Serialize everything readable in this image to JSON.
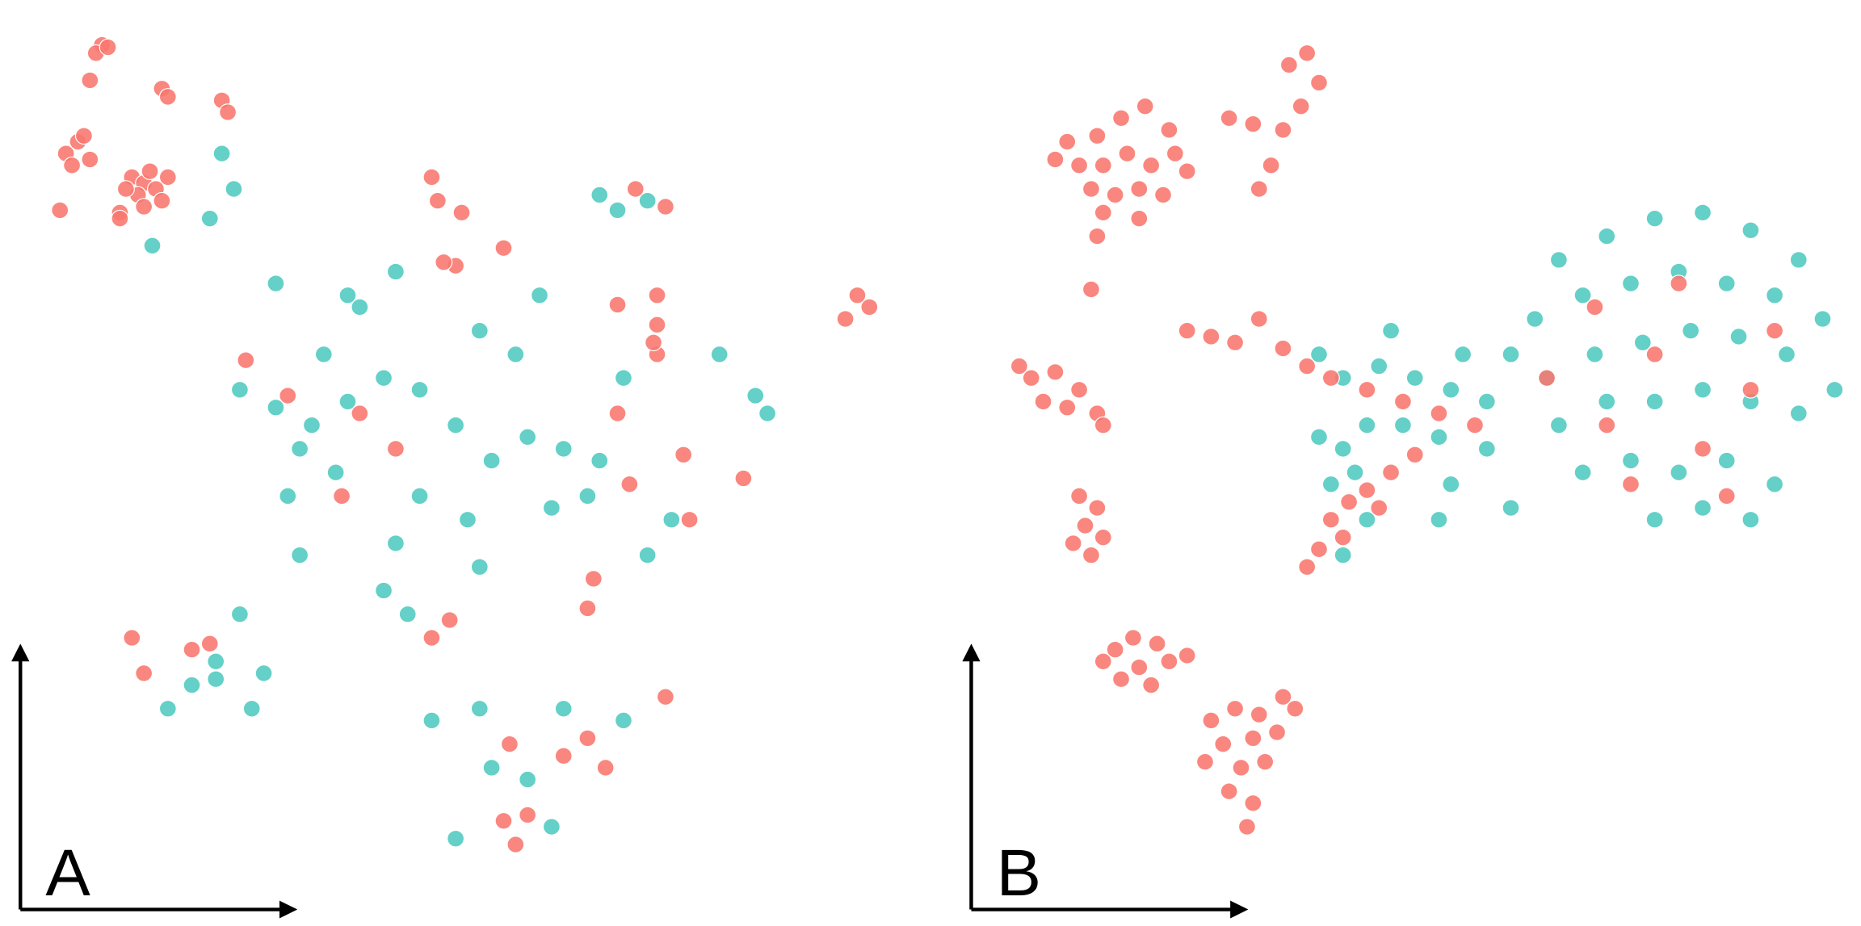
{
  "chart_data": [
    {
      "type": "scatter",
      "title": "A",
      "xlim": [
        0,
        720
      ],
      "ylim": [
        0,
        720
      ],
      "series": [
        {
          "color": "#4ec9c0",
          "x": [
            470,
            485,
            510,
            155,
            165,
            145,
            97,
            200,
            230,
            260,
            290,
            320,
            350,
            380,
            410,
            440,
            470,
            460,
            430,
            400,
            370,
            300,
            270,
            240,
            220,
            250,
            320,
            360,
            300,
            290,
            310,
            370,
            530,
            510,
            570,
            610,
            600,
            420,
            490,
            170,
            150,
            130,
            170,
            110,
            180,
            150,
            190,
            370,
            380,
            440,
            490,
            430,
            350,
            410,
            330,
            220,
            210,
            200,
            260
          ],
          "values": [
            575,
            562,
            570,
            610,
            580,
            555,
            532,
            395,
            380,
            400,
            420,
            410,
            380,
            350,
            370,
            360,
            350,
            320,
            310,
            440,
            460,
            510,
            480,
            440,
            360,
            340,
            320,
            300,
            280,
            240,
            220,
            260,
            300,
            270,
            440,
            390,
            405,
            490,
            420,
            410,
            180,
            160,
            220,
            140,
            140,
            165,
            170,
            140,
            90,
            140,
            130,
            40,
            30,
            80,
            130,
            270,
            320,
            500,
            490
          ]
        },
        {
          "color": "#f8766d",
          "x": [
            55,
            50,
            60,
            45,
            105,
            110,
            155,
            160,
            25,
            35,
            30,
            45,
            40,
            80,
            90,
            100,
            85,
            95,
            110,
            75,
            90,
            105,
            70,
            70,
            20,
            330,
            335,
            355,
            350,
            340,
            390,
            500,
            525,
            485,
            518,
            518,
            518,
            515,
            685,
            675,
            695,
            175,
            210,
            255,
            270,
            300,
            485,
            495,
            540,
            590,
            465,
            460,
            345,
            330,
            145,
            80,
            90,
            395,
            460,
            475,
            390,
            400,
            525,
            545,
            410,
            440,
            130
          ],
          "values": [
            702,
            695,
            700,
            672,
            665,
            658,
            655,
            645,
            610,
            620,
            600,
            605,
            625,
            590,
            585,
            580,
            575,
            595,
            590,
            580,
            565,
            570,
            560,
            555,
            562,
            590,
            570,
            560,
            515,
            518,
            530,
            580,
            565,
            482,
            490,
            465,
            440,
            450,
            490,
            470,
            480,
            435,
            405,
            320,
            390,
            360,
            390,
            330,
            355,
            335,
            250,
            225,
            215,
            200,
            195,
            200,
            170,
            110,
            115,
            90,
            45,
            25,
            150,
            300,
            50,
            100,
            190
          ]
        }
      ]
    },
    {
      "type": "scatter",
      "title": "B",
      "xlim": [
        0,
        720
      ],
      "ylim": [
        0,
        720
      ],
      "series": [
        {
          "color": "#4ec9c0",
          "x": [
            480,
            520,
            560,
            600,
            640,
            680,
            460,
            500,
            540,
            580,
            620,
            660,
            700,
            470,
            510,
            550,
            590,
            630,
            670,
            710,
            480,
            520,
            560,
            600,
            640,
            680,
            500,
            540,
            580,
            620,
            660,
            560,
            600,
            640,
            280,
            300,
            330,
            360,
            390,
            420,
            440,
            400,
            350,
            380,
            320,
            300,
            340,
            280,
            310,
            290,
            300,
            320,
            390,
            420,
            440,
            380
          ],
          "values": [
            520,
            540,
            555,
            560,
            545,
            520,
            470,
            490,
            500,
            510,
            500,
            490,
            470,
            420,
            440,
            450,
            460,
            455,
            440,
            410,
            380,
            400,
            400,
            410,
            400,
            390,
            340,
            350,
            340,
            350,
            330,
            300,
            310,
            300,
            440,
            420,
            430,
            420,
            410,
            400,
            440,
            440,
            380,
            370,
            380,
            360,
            460,
            370,
            340,
            330,
            270,
            300,
            330,
            360,
            310,
            300
          ]
        },
        {
          "color": "#f8766d",
          "x": [
            95,
            115,
            135,
            155,
            70,
            80,
            100,
            120,
            140,
            160,
            90,
            110,
            130,
            150,
            100,
            130,
            60,
            170,
            255,
            270,
            280,
            250,
            240,
            230,
            225,
            265,
            205,
            95,
            90,
            40,
            60,
            80,
            50,
            70,
            30,
            95,
            100,
            80,
            95,
            85,
            100,
            75,
            90,
            110,
            125,
            145,
            130,
            155,
            115,
            140,
            170,
            100,
            190,
            210,
            230,
            250,
            200,
            225,
            245,
            215,
            235,
            205,
            225,
            220,
            260,
            185,
            170,
            190,
            210,
            230,
            250,
            270,
            290,
            320,
            350,
            380,
            410,
            290,
            305,
            320,
            340,
            360,
            280,
            300,
            330,
            270,
            470,
            520,
            560,
            600,
            640,
            510,
            580,
            660,
            540,
            620
          ],
          "values": [
            625,
            640,
            650,
            630,
            620,
            600,
            600,
            610,
            600,
            610,
            580,
            575,
            580,
            575,
            560,
            555,
            605,
            595,
            685,
            695,
            670,
            630,
            600,
            580,
            635,
            650,
            640,
            540,
            495,
            420,
            425,
            410,
            400,
            395,
            430,
            390,
            380,
            320,
            310,
            295,
            285,
            280,
            270,
            190,
            200,
            195,
            175,
            180,
            165,
            160,
            185,
            180,
            130,
            140,
            135,
            150,
            110,
            115,
            120,
            90,
            95,
            70,
            60,
            40,
            140,
            95,
            460,
            455,
            450,
            470,
            445,
            430,
            420,
            410,
            400,
            390,
            380,
            300,
            315,
            325,
            340,
            355,
            275,
            285,
            310,
            260,
            420,
            380,
            440,
            360,
            410,
            480,
            500,
            460,
            330,
            320
          ]
        }
      ]
    }
  ]
}
